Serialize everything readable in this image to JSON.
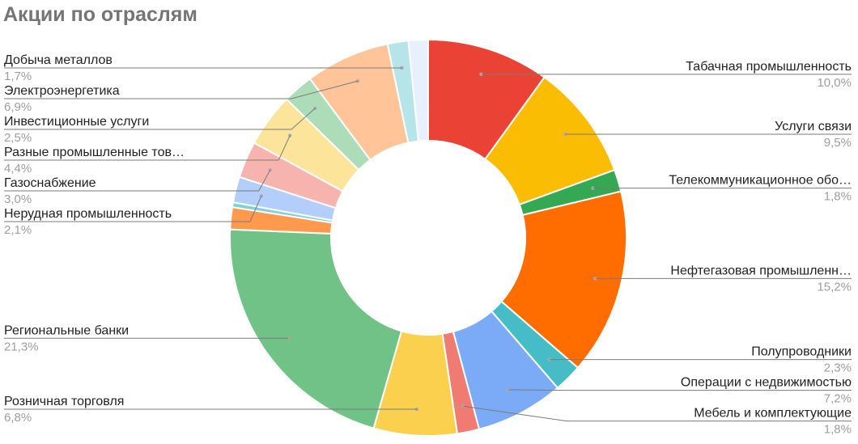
{
  "chart_data": {
    "type": "pie",
    "title": "Акции по отраслям",
    "donut": true,
    "slices": [
      {
        "label": "Табачная промышленность",
        "value": 10.0,
        "value_label": "10,0%",
        "color": "#ea4335",
        "side": "right"
      },
      {
        "label": "Услуги связи",
        "value": 9.5,
        "value_label": "9,5%",
        "color": "#fbbc04",
        "side": "right"
      },
      {
        "label": "Телекоммуникационное обо…",
        "value": 1.8,
        "value_label": "1,8%",
        "color": "#34a853",
        "side": "right"
      },
      {
        "label": "Нефтегазовая промышленн…",
        "value": 15.2,
        "value_label": "15,2%",
        "color": "#ff6d01",
        "side": "right"
      },
      {
        "label": "Полупроводники",
        "value": 2.3,
        "value_label": "2,3%",
        "color": "#46bdc6",
        "side": "right"
      },
      {
        "label": "Операции с недвижимостью",
        "value": 7.2,
        "value_label": "7,2%",
        "color": "#7baaf7",
        "side": "right"
      },
      {
        "label": "Мебель и комплектующие",
        "value": 1.8,
        "value_label": "1,8%",
        "color": "#f07b72",
        "side": "right"
      },
      {
        "label": "Розничная торговля",
        "value": 6.8,
        "value_label": "6,8%",
        "color": "#fcd04f",
        "side": "left"
      },
      {
        "label": "Региональные банки",
        "value": 21.3,
        "value_label": "21,3%",
        "color": "#71c287",
        "side": "left"
      },
      {
        "label": "",
        "value": 1.8,
        "value_label": "",
        "color": "#ff994d",
        "side": "none"
      },
      {
        "label": "",
        "value": 0.4,
        "value_label": "",
        "color": "#7ed1d7",
        "side": "none"
      },
      {
        "label": "Нерудная промышленность",
        "value": 2.1,
        "value_label": "2,1%",
        "color": "#b3cefb",
        "side": "left"
      },
      {
        "label": "Газоснабжение",
        "value": 3.0,
        "value_label": "3,0%",
        "color": "#f7b4ae",
        "side": "left"
      },
      {
        "label": "Разные промышленные тов…",
        "value": 4.4,
        "value_label": "4,4%",
        "color": "#fde49b",
        "side": "left"
      },
      {
        "label": "Инвестиционные услуги",
        "value": 2.5,
        "value_label": "2,5%",
        "color": "#addcb9",
        "side": "left"
      },
      {
        "label": "Электроэнергетика",
        "value": 6.9,
        "value_label": "6,9%",
        "color": "#ffc599",
        "side": "left"
      },
      {
        "label": "Добыча металлов",
        "value": 1.7,
        "value_label": "1,7%",
        "color": "#b5e5e8",
        "side": "left"
      },
      {
        "label": "",
        "value": 1.6,
        "value_label": "",
        "color": "#e8f0fe",
        "side": "none"
      }
    ]
  }
}
